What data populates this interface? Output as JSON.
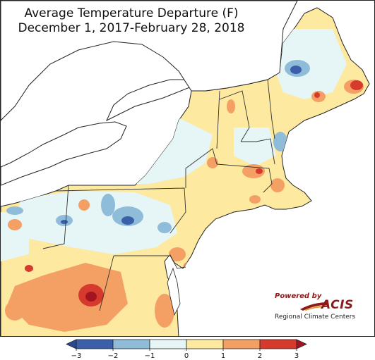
{
  "title": {
    "line1": "Average Temperature Departure (F)",
    "line2": "December 1, 2017-February 28, 2018"
  },
  "legend": {
    "ticks": [
      "−3",
      "−2",
      "−1",
      "0",
      "1",
      "2",
      "3"
    ],
    "tick_values": [
      -3,
      -2,
      -1,
      0,
      1,
      2,
      3
    ],
    "colors": [
      "#3b5fa8",
      "#8fbcd8",
      "#e6f5f5",
      "#fde9a0",
      "#f4a064",
      "#d63a2c"
    ],
    "arrow_low_color": "#2a4a8f",
    "arrow_high_color": "#a31420"
  },
  "logo": {
    "powered": "Powered by",
    "name": "ACIS",
    "subtitle": "Regional Climate Centers"
  },
  "map": {
    "water_color": "#ffffff",
    "land_base_color": "#fde9a0",
    "region": "Northeast United States"
  }
}
